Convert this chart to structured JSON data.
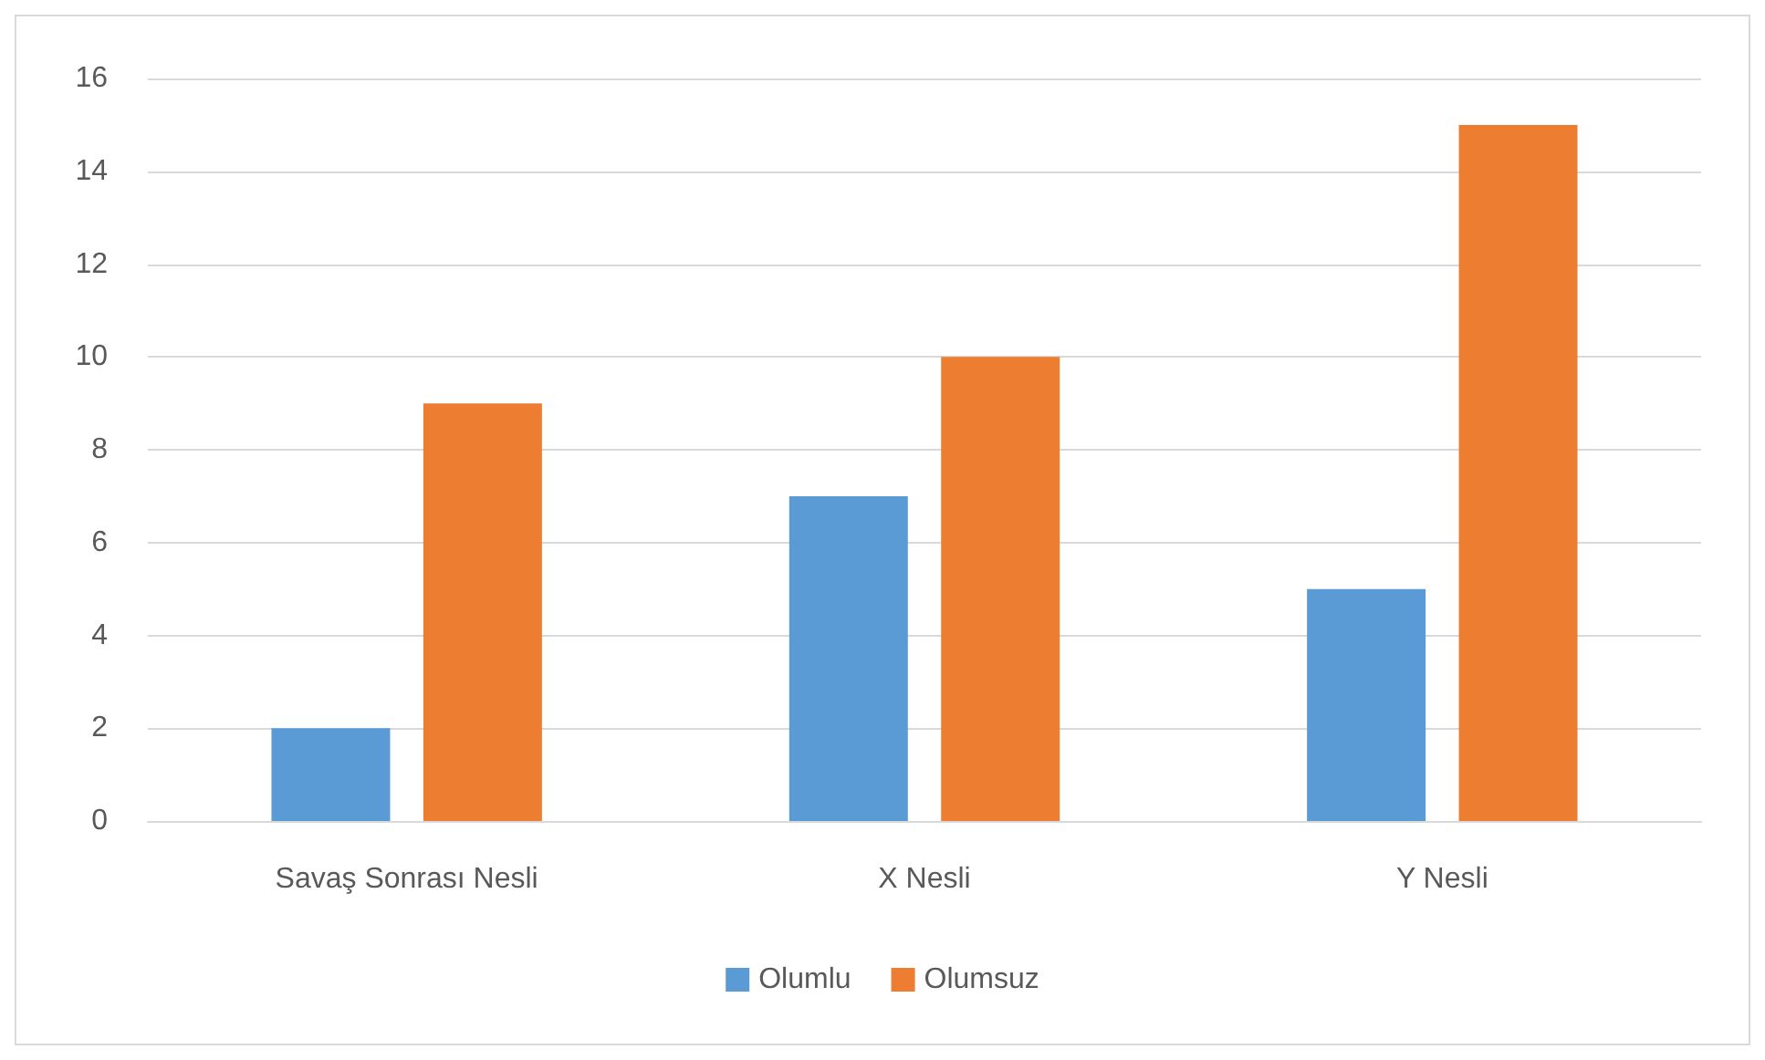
{
  "chart_data": {
    "type": "bar",
    "categories": [
      "Savaş Sonrası Nesli",
      "X Nesli",
      "Y Nesli"
    ],
    "series": [
      {
        "name": "Olumlu",
        "color": "#5b9bd5",
        "values": [
          2,
          7,
          5
        ]
      },
      {
        "name": "Olumsuz",
        "color": "#ed7d31",
        "values": [
          9,
          10,
          15
        ]
      }
    ],
    "ylim": [
      0,
      16
    ],
    "yticks": [
      0,
      2,
      4,
      6,
      8,
      10,
      12,
      14,
      16
    ],
    "grid": "y",
    "legend": "bottom"
  }
}
